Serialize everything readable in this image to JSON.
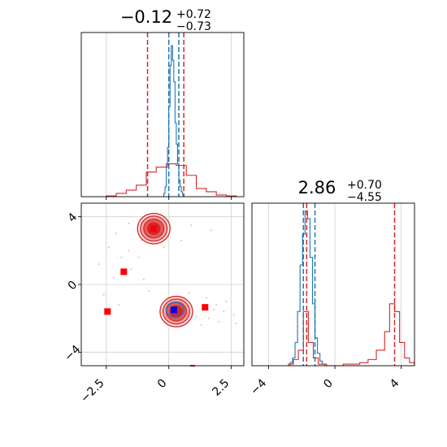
{
  "chart_data": [
    {
      "type": "histogram",
      "panel": "top-left",
      "title": {
        "value": "−0.12",
        "plus": "+0.72",
        "minus": "−0.73"
      },
      "xlim": [
        -3.5,
        3.0
      ],
      "grid": true,
      "series": [
        {
          "color": "#1f77b4",
          "bin_edges": [
            -0.3,
            -0.25,
            -0.2,
            -0.15,
            -0.1,
            -0.05,
            0.0,
            0.05,
            0.1,
            0.15,
            0.2,
            0.25,
            0.3,
            0.35,
            0.4,
            0.45,
            0.5,
            0.55,
            0.6,
            0.65
          ],
          "counts": [
            0,
            0,
            0.02,
            0.06,
            0.18,
            0.3,
            0.55,
            0.8,
            0.92,
            0.83,
            0.7,
            0.45,
            0.32,
            0.2,
            0.1,
            0.06,
            0.03,
            0.01,
            0
          ]
        },
        {
          "color": "#d62728",
          "bin_edges": [
            -2.5,
            -2.1,
            -1.7,
            -1.3,
            -0.9,
            -0.5,
            -0.1,
            0.3,
            0.7,
            1.1,
            1.5,
            1.9,
            2.3,
            2.7
          ],
          "counts": [
            0.005,
            0.02,
            0.04,
            0.07,
            0.15,
            0.18,
            0.2,
            0.19,
            0.13,
            0.05,
            0.03,
            0.01,
            0.005
          ]
        }
      ],
      "quantile_lines": [
        {
          "color": "#d62728",
          "x": [
            -0.85,
            0.6
          ]
        },
        {
          "color": "#1f77b4",
          "x": [
            0.0,
            0.4
          ]
        }
      ],
      "xticks": [
        -2.5,
        0.0,
        2.5
      ]
    },
    {
      "type": "histogram",
      "panel": "bottom-right",
      "title": {
        "value": "2.86",
        "plus": "+0.70",
        "minus": "−4.55"
      },
      "xlim": [
        -5.0,
        4.8
      ],
      "grid": true,
      "series": [
        {
          "color": "#1f77b4",
          "bin_edges": [
            -2.7,
            -2.55,
            -2.4,
            -2.25,
            -2.1,
            -1.95,
            -1.8,
            -1.65,
            -1.5,
            -1.35,
            -1.2,
            -1.05,
            -0.9,
            -0.75,
            -0.6
          ],
          "counts": [
            0.02,
            0.05,
            0.15,
            0.35,
            0.65,
            0.85,
            1.0,
            0.95,
            0.7,
            0.4,
            0.18,
            0.08,
            0.03,
            0.01
          ]
        },
        {
          "color": "#d62728",
          "bin_edges": [
            -2.8,
            -2.5,
            -2.2,
            -1.9,
            -1.6,
            -1.3,
            -1.0,
            -0.5,
            0.5,
            1.5,
            2.0,
            2.5,
            3.0,
            3.3,
            3.6,
            3.9,
            4.2,
            4.5,
            4.8
          ],
          "counts": [
            0.01,
            0.04,
            0.1,
            0.35,
            0.15,
            0.05,
            0.01,
            0.0,
            0.01,
            0.02,
            0.04,
            0.1,
            0.22,
            0.4,
            0.35,
            0.15,
            0.05,
            0.02
          ]
        }
      ],
      "quantile_lines": [
        {
          "color": "#1f77b4",
          "x": [
            -1.9,
            -1.2
          ]
        },
        {
          "color": "#d62728",
          "x": [
            -1.7,
            3.6
          ]
        }
      ],
      "xticks": [
        -4,
        0,
        4
      ]
    },
    {
      "type": "scatter",
      "panel": "bottom-left",
      "xlim": [
        -3.5,
        3.0
      ],
      "ylim": [
        -4.8,
        4.8
      ],
      "grid": true,
      "xticks": [
        -2.5,
        0.0,
        2.5
      ],
      "yticks": [
        -4,
        0,
        4
      ],
      "red_contours": [
        {
          "cx": -0.6,
          "cy": 3.3,
          "rx": 1.3,
          "ry": 0.9,
          "level": 3
        },
        {
          "cx": 0.3,
          "cy": -1.6,
          "rx": 1.3,
          "ry": 0.9,
          "level": 3
        }
      ],
      "blue_contour": {
        "cx": 0.25,
        "cy": -1.5,
        "rx": 0.35,
        "ry": 0.5
      },
      "square_markers": [
        {
          "x": -0.6,
          "y": 3.3,
          "color": "#ff0000"
        },
        {
          "x": -1.8,
          "y": 0.75,
          "color": "#ff0000"
        },
        {
          "x": -2.45,
          "y": -1.6,
          "color": "#ff0000"
        },
        {
          "x": 1.45,
          "y": -1.35,
          "color": "#ff0000"
        },
        {
          "x": 0.2,
          "y": -1.5,
          "color": "#0000ff"
        }
      ],
      "scatter_points": [
        [
          -2.8,
          1.2
        ],
        [
          -2.2,
          0.4
        ],
        [
          -1.9,
          1.6
        ],
        [
          -2.6,
          -0.6
        ],
        [
          -2.0,
          -1.2
        ],
        [
          -1.5,
          0.9
        ],
        [
          -1.2,
          1.6
        ],
        [
          -1.6,
          2.0
        ],
        [
          -2.4,
          2.2
        ],
        [
          -1.0,
          0.3
        ],
        [
          -2.1,
          3.0
        ],
        [
          -1.6,
          3.6
        ],
        [
          1.5,
          -0.8
        ],
        [
          1.8,
          -1.5
        ],
        [
          2.0,
          -2.2
        ],
        [
          2.3,
          -1.0
        ],
        [
          1.3,
          -2.4
        ],
        [
          2.6,
          -1.8
        ],
        [
          0.8,
          -0.5
        ],
        [
          1.1,
          -1.9
        ],
        [
          1.6,
          -2.0
        ],
        [
          1.9,
          -1.2
        ],
        [
          2.2,
          -1.6
        ],
        [
          2.7,
          -2.3
        ],
        [
          -0.2,
          2.2
        ],
        [
          0.5,
          2.6
        ],
        [
          0.9,
          3.5
        ],
        [
          -1.1,
          2.6
        ],
        [
          1.7,
          3.2
        ],
        [
          -0.8,
          -0.4
        ]
      ]
    }
  ]
}
